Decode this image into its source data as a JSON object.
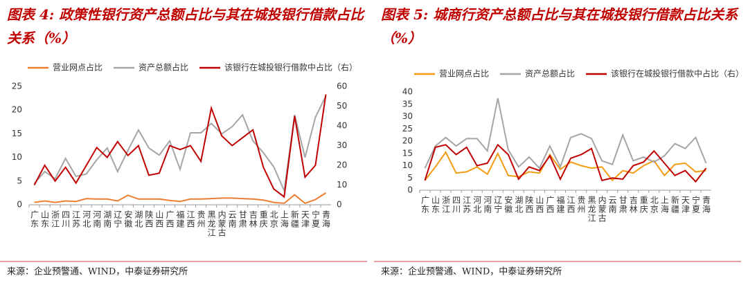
{
  "chart_data": [
    {
      "type": "line",
      "title": "图表 4: 政策性银行资产总额占比与其在城投银行借款占比关系（%）",
      "source": "来源：企业预警通、WIND，中泰证券研究所",
      "categories": [
        "广东",
        "山东",
        "浙江",
        "四川",
        "江苏",
        "河北",
        "河南",
        "湖南",
        "辽宁",
        "安徽",
        "湖北",
        "陕西",
        "山西",
        "广西",
        "福建",
        "江西",
        "贵州",
        "黑龙江",
        "内蒙古",
        "云南",
        "甘肃",
        "吉林",
        "重庆",
        "北京",
        "上海",
        "新疆",
        "天津",
        "宁夏",
        "青海"
      ],
      "series": [
        {
          "name": "营业网点占比",
          "color": "#ed7d31",
          "values": [
            0.5,
            0.8,
            0.5,
            0.8,
            0.7,
            1.3,
            1.2,
            1.2,
            0.8,
            2.0,
            1.2,
            1.2,
            1.2,
            0.9,
            0.7,
            1.2,
            1.2,
            1.3,
            1.4,
            1.4,
            1.3,
            1.2,
            1.0,
            0.5,
            0.3,
            2.1,
            0.3,
            1.1,
            2.5
          ]
        },
        {
          "name": "资产总额占比",
          "color": "#a5a5a5",
          "values": [
            4.5,
            7,
            5.5,
            9.8,
            6,
            6.5,
            9.5,
            12,
            7,
            11.5,
            15.8,
            12,
            10.5,
            13.5,
            7.5,
            15.2,
            15.2,
            17.2,
            15,
            16.5,
            19,
            13.5,
            11,
            8,
            3,
            19,
            10,
            18.5,
            23
          ]
        },
        {
          "name": "该银行在城投银行借款中占比（右）",
          "color": "#c00000",
          "axis": "y2",
          "values": [
            10,
            20,
            12,
            19,
            11,
            20,
            29,
            24,
            32,
            25,
            30,
            15,
            16,
            30,
            28,
            30,
            22,
            49,
            35,
            30,
            34,
            38,
            19,
            8,
            4,
            45,
            14,
            20,
            56
          ]
        }
      ],
      "ylim": [
        0,
        25
      ],
      "yticks": [
        0,
        5,
        10,
        15,
        20,
        25
      ],
      "y2lim": [
        0,
        60
      ],
      "y2ticks": [
        0,
        10,
        20,
        30,
        40,
        50,
        60
      ],
      "grid": false,
      "legend": "top"
    },
    {
      "type": "line",
      "title": "图表 5: 城商行资产总额占比与其在城投银行借款占比关系（%）",
      "source": "来源：企业预警通、WIND，中泰证券研究所",
      "categories": [
        "广东",
        "山东",
        "浙江",
        "四川",
        "江苏",
        "河北",
        "河南",
        "辽宁",
        "安徽",
        "湖北",
        "陕西",
        "山西",
        "广西",
        "福建",
        "江西",
        "贵州",
        "黑龙江",
        "内蒙古",
        "云南",
        "甘肃",
        "吉林",
        "重庆",
        "北京",
        "上海",
        "新疆",
        "天津",
        "宁夏",
        "青海"
      ],
      "series": [
        {
          "name": "营业网点占比",
          "color": "#f39c12",
          "values": [
            4,
            9.5,
            15.5,
            7,
            7.5,
            9.5,
            6.5,
            15,
            6,
            5.5,
            7.5,
            7,
            14.5,
            8.5,
            11.5,
            10,
            9,
            9.5,
            4,
            8,
            7,
            10,
            12,
            6,
            10.5,
            11,
            7.5,
            8
          ]
        },
        {
          "name": "资产总额占比",
          "color": "#a5a5a5",
          "values": [
            9,
            18,
            21.5,
            18,
            21,
            21,
            16,
            37.5,
            16.5,
            9.5,
            13.5,
            9,
            18,
            9.5,
            21.5,
            23,
            21,
            12,
            10.5,
            22.5,
            12,
            13.5,
            11.5,
            14,
            19,
            17,
            21.5,
            11
          ]
        },
        {
          "name": "该银行在城投银行借款中占比（右）",
          "color": "#c00000",
          "values": [
            4,
            17.5,
            18.5,
            14.5,
            17.5,
            10,
            11,
            18.5,
            14.5,
            4.5,
            9.5,
            8,
            14,
            4.5,
            13,
            14.5,
            17,
            4,
            5,
            4.5,
            10,
            11.5,
            16,
            11,
            6,
            8,
            3.5,
            9
          ]
        }
      ],
      "ylim": [
        0,
        40
      ],
      "yticks": [
        0,
        5,
        10,
        15,
        20,
        25,
        30,
        35,
        40
      ],
      "grid": false,
      "legend": "top"
    }
  ]
}
